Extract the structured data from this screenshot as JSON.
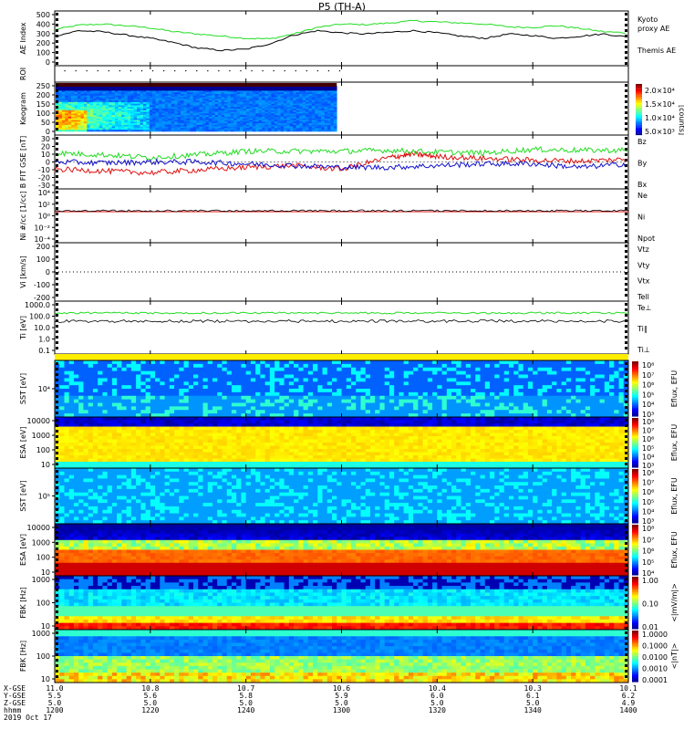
{
  "title": "P5 (TH-A)",
  "date_label": "2019 Oct 17",
  "colors": {
    "green": "#22dd22",
    "red": "#dd1111",
    "blue": "#1111cc",
    "black": "#000000"
  },
  "chart_data": {
    "type": "line",
    "time_axis": {
      "xlim": [
        "12:00",
        "14:00"
      ],
      "ticks": [
        "1200",
        "1220",
        "1240",
        "1300",
        "1320",
        "1340",
        "1400"
      ],
      "rows": [
        {
          "label": "X-GSE",
          "values": [
            "11.0",
            "10.8",
            "10.7",
            "10.6",
            "10.4",
            "10.3",
            "10.1"
          ]
        },
        {
          "label": "Y-GSE",
          "values": [
            "5.5",
            "5.6",
            "5.8",
            "5.9",
            "6.0",
            "6.1",
            "6.2"
          ]
        },
        {
          "label": "Z-GSE",
          "values": [
            "5.0",
            "5.0",
            "5.0",
            "5.0",
            "5.0",
            "5.0",
            "4.9"
          ]
        },
        {
          "label": "hhmm",
          "values": [
            "1200",
            "1220",
            "1240",
            "1300",
            "1320",
            "1340",
            "1400"
          ]
        }
      ]
    },
    "panels": [
      {
        "id": "ae",
        "ylabel": "AE Index",
        "ylim": [
          0,
          500
        ],
        "ticks": [
          "500",
          "400",
          "300",
          "200",
          "100",
          "0"
        ],
        "legend": [
          {
            "text": "Kyoto proxy AE",
            "color": "#22dd22"
          },
          {
            "text": "Themis AE",
            "color": "#000000"
          }
        ],
        "series": [
          {
            "name": "Kyoto proxy AE",
            "color": "#22dd22",
            "x": [
              0,
              5,
              10,
              15,
              20,
              25,
              30,
              35,
              40,
              45,
              50,
              55,
              60,
              65,
              70,
              75,
              80,
              85,
              90,
              95,
              100,
              105,
              110,
              115,
              120
            ],
            "y": [
              330,
              370,
              380,
              365,
              345,
              310,
              290,
              270,
              250,
              245,
              290,
              350,
              380,
              375,
              390,
              410,
              400,
              390,
              380,
              355,
              350,
              365,
              340,
              310,
              300
            ]
          },
          {
            "name": "Themis AE",
            "color": "#000000",
            "x": [
              0,
              5,
              10,
              15,
              20,
              25,
              30,
              35,
              40,
              45,
              50,
              55,
              60,
              65,
              70,
              75,
              80,
              85,
              90,
              95,
              100,
              105,
              110,
              115,
              120
            ],
            "y": [
              270,
              320,
              310,
              280,
              250,
              210,
              160,
              140,
              150,
              200,
              280,
              320,
              300,
              290,
              305,
              320,
              300,
              270,
              250,
              290,
              275,
              250,
              270,
              290,
              260
            ]
          }
        ]
      },
      {
        "id": "roi",
        "ylabel": "ROI"
      },
      {
        "id": "keogram",
        "ylabel": "Keogram",
        "ylim": [
          0,
          250
        ],
        "ticks": [
          "250",
          "200",
          "150",
          "100",
          "50",
          "0"
        ],
        "colorbar": {
          "labels": [
            "2.0×10⁴",
            "1.5×10⁴",
            "1.0×10⁴",
            "5.0×10³"
          ],
          "title": "[counts]"
        }
      },
      {
        "id": "bfield",
        "ylabel": "B FIT GSE [nT]",
        "ylim": [
          -30,
          30
        ],
        "ticks": [
          "30",
          "20",
          "10",
          "0",
          "-10",
          "-20",
          "-30"
        ],
        "legend": [
          {
            "text": "Bz",
            "color": "#dd1111"
          },
          {
            "text": "By",
            "color": "#22dd22"
          },
          {
            "text": "Bx",
            "color": "#1111cc"
          }
        ],
        "series": [
          {
            "name": "Bz",
            "color": "#dd1111",
            "x": [
              0,
              10,
              20,
              30,
              40,
              50,
              60,
              70,
              75,
              80,
              90,
              100,
              110,
              120
            ],
            "y": [
              -8,
              -10,
              -12,
              -9,
              -6,
              -4,
              -8,
              5,
              9,
              6,
              4,
              2,
              1,
              3
            ]
          },
          {
            "name": "By",
            "color": "#22dd22",
            "x": [
              0,
              10,
              20,
              30,
              40,
              50,
              60,
              70,
              80,
              90,
              100,
              110,
              120
            ],
            "y": [
              10,
              8,
              5,
              8,
              12,
              12,
              12,
              13,
              11,
              10,
              14,
              13,
              13
            ]
          },
          {
            "name": "Bx",
            "color": "#1111cc",
            "x": [
              0,
              10,
              20,
              30,
              40,
              50,
              60,
              70,
              80,
              90,
              100,
              110,
              120
            ],
            "y": [
              0,
              -1,
              0,
              0,
              -2,
              -4,
              -6,
              -6,
              -4,
              -2,
              -2,
              -6,
              -2
            ]
          }
        ]
      },
      {
        "id": "density",
        "ylabel": "Ni #/cc [1/cc]",
        "ticks": [
          "10⁴",
          "10²",
          "10⁰",
          "10⁻²",
          "10⁻⁴"
        ],
        "legend": [
          {
            "text": "Ne",
            "color": "#dd1111"
          },
          {
            "text": "Ni",
            "color": "#000000"
          },
          {
            "text": "Npot",
            "color": "#1111cc"
          }
        ]
      },
      {
        "id": "velocity",
        "ylabel": "Vi [km/s]",
        "ticks": [
          "200",
          "100",
          "0",
          "-100",
          "-200"
        ],
        "legend": [
          {
            "text": "Vtz",
            "color": "#dd1111"
          },
          {
            "text": "Vty",
            "color": "#22dd22"
          },
          {
            "text": "Vtx",
            "color": "#1111cc"
          },
          {
            "text": "Tell",
            "color": "#000000"
          }
        ]
      },
      {
        "id": "temperature",
        "ylabel": "Ti [eV]",
        "ticks": [
          "1000.0",
          "100.0",
          "10.0",
          "1.0",
          "0.1"
        ],
        "legend": [
          {
            "text": "Te⊥",
            "color": "#dd1111"
          },
          {
            "text": "Ti∥",
            "color": "#22dd22"
          },
          {
            "text": "Ti⊥",
            "color": "#1111cc"
          }
        ]
      },
      {
        "id": "sst_e",
        "ylabel": "SST [eV]",
        "ticks": [
          "10⁴"
        ],
        "cb_title": "Eflux, EFU",
        "cb_ticks": [
          "10⁸",
          "10⁷",
          "10⁶",
          "10⁵",
          "10⁴",
          "10³"
        ]
      },
      {
        "id": "esa_e",
        "ylabel": "ESA [eV]",
        "ticks": [
          "10000",
          "1000",
          "100",
          "10"
        ],
        "cb_title": "Eflux, EFU",
        "cb_ticks": [
          "10⁸",
          "10⁷",
          "10⁶",
          "10⁵",
          "10⁴",
          "10³"
        ]
      },
      {
        "id": "sst_i",
        "ylabel": "SST [eV]",
        "ticks": [
          "10⁵"
        ],
        "cb_title": "Eflux, EFU",
        "cb_ticks": [
          "10⁸",
          "10⁷",
          "10⁶",
          "10⁵",
          "10⁴",
          "10³"
        ]
      },
      {
        "id": "esa_i",
        "ylabel": "ESA [eV]",
        "ticks": [
          "10000",
          "1000",
          "100",
          "10"
        ],
        "cb_title": "Eflux, EFU",
        "cb_ticks": [
          "10⁸",
          "10⁷",
          "10⁶",
          "10⁵",
          "10⁴"
        ]
      },
      {
        "id": "fbk_e",
        "ylabel": "FBK [Hz]",
        "ticks": [
          "1000",
          "100",
          "10"
        ],
        "cb_title": "<|mV/m|>",
        "cb_ticks": [
          "1.00",
          "0.10",
          "0.01"
        ]
      },
      {
        "id": "fbk_b",
        "ylabel": "FBK [Hz]",
        "ticks": [
          "1000",
          "100",
          "10"
        ],
        "cb_title": "<|nT|>",
        "cb_ticks": [
          "1.0000",
          "0.1000",
          "0.0100",
          "0.0010",
          "0.0001"
        ]
      }
    ]
  }
}
